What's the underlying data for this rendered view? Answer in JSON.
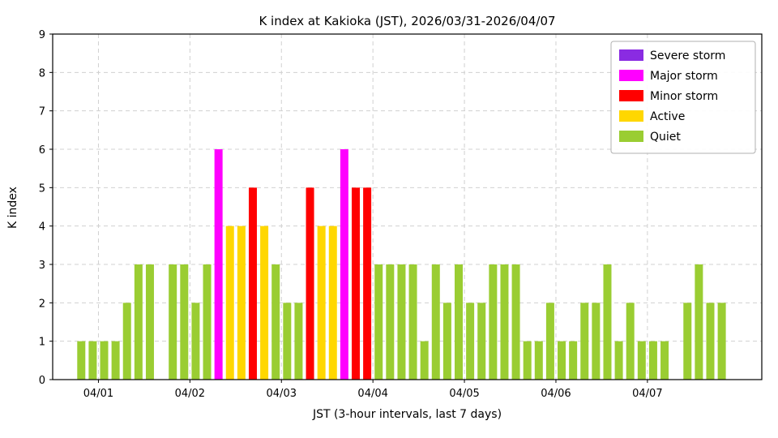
{
  "chart_data": {
    "type": "bar",
    "title": "K index at Kakioka (JST), 2026/03/31-2026/04/07",
    "xlabel": "JST (3-hour intervals, last 7 days)",
    "ylabel": "K index",
    "ylim": [
      0,
      9
    ],
    "grid": true,
    "y_tick_labels": [
      "0",
      "1",
      "2",
      "3",
      "4",
      "5",
      "6",
      "7",
      "8",
      "9"
    ],
    "x_tick_labels": [
      "04/01",
      "04/02",
      "04/03",
      "04/04",
      "04/05",
      "04/06",
      "04/07"
    ],
    "bar_interval_hours": 3,
    "intervals_per_day": 8,
    "first_tick_slot": 4,
    "k_values": [
      0,
      0,
      1,
      1,
      1,
      1,
      2,
      3,
      3,
      0,
      3,
      3,
      2,
      3,
      6,
      4,
      4,
      5,
      4,
      3,
      2,
      2,
      5,
      4,
      4,
      6,
      5,
      5,
      3,
      3,
      3,
      3,
      1,
      3,
      2,
      3,
      2,
      2,
      3,
      3,
      3,
      1,
      1,
      2,
      1,
      1,
      2,
      2,
      3,
      1,
      2,
      1,
      1,
      1,
      0,
      2,
      3,
      2,
      2,
      0
    ],
    "legend_position": "upper right",
    "legend": [
      {
        "label": "Severe storm",
        "color": "#8a2be2",
        "k_min": 8
      },
      {
        "label": "Major storm",
        "color": "#ff00ff",
        "k_min": 6
      },
      {
        "label": "Minor storm",
        "color": "#ff0000",
        "k_min": 5
      },
      {
        "label": "Active",
        "color": "#ffd700",
        "k_min": 4
      },
      {
        "label": "Quiet",
        "color": "#9acd32",
        "k_min": 0
      }
    ],
    "grid_color": "#d0d0d0",
    "axis_color": "#000000"
  }
}
